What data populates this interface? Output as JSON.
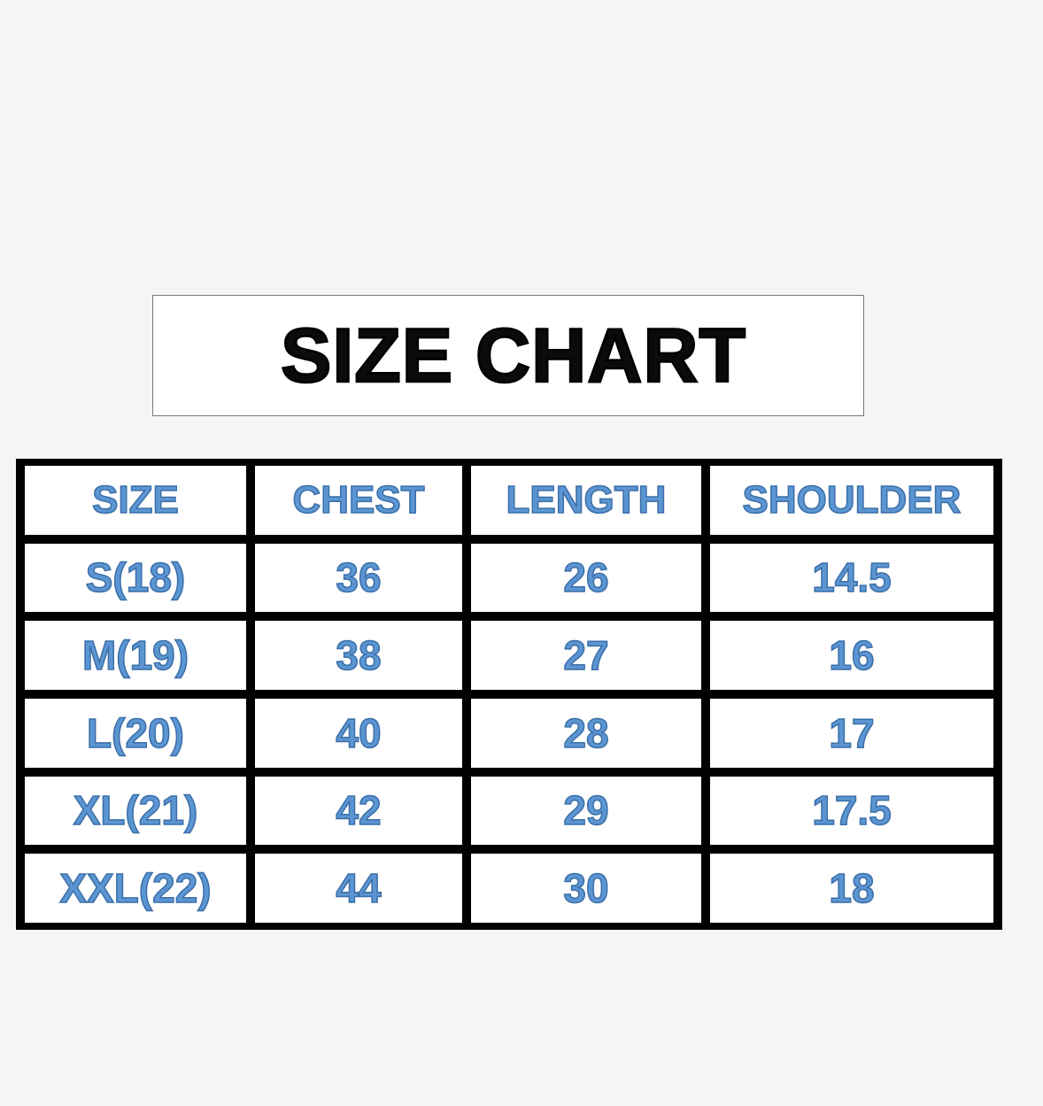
{
  "title": "SIZE CHART",
  "colors": {
    "background": "#f5f5f5",
    "title_text": "#0b0b0b",
    "table_text": "#5b95d2",
    "table_border": "#000000"
  },
  "table": {
    "headers": [
      "SIZE",
      "CHEST",
      "LENGTH",
      "SHOULDER"
    ],
    "rows": [
      [
        "S(18)",
        "36",
        "26",
        "14.5"
      ],
      [
        "M(19)",
        "38",
        "27",
        "16"
      ],
      [
        "L(20)",
        "40",
        "28",
        "17"
      ],
      [
        "XL(21)",
        "42",
        "29",
        "17.5"
      ],
      [
        "XXL(22)",
        "44",
        "30",
        "18"
      ]
    ]
  }
}
